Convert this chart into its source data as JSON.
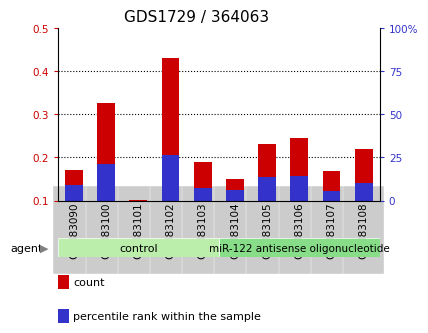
{
  "title": "GDS1729 / 364063",
  "categories": [
    "GSM83090",
    "GSM83100",
    "GSM83101",
    "GSM83102",
    "GSM83103",
    "GSM83104",
    "GSM83105",
    "GSM83106",
    "GSM83107",
    "GSM83108"
  ],
  "red_values": [
    0.17,
    0.325,
    0.101,
    0.43,
    0.19,
    0.15,
    0.232,
    0.245,
    0.168,
    0.22
  ],
  "blue_values": [
    0.135,
    0.185,
    0.1,
    0.205,
    0.13,
    0.125,
    0.155,
    0.158,
    0.122,
    0.14
  ],
  "ymin": 0.1,
  "ymax": 0.5,
  "yticks_left": [
    0.1,
    0.2,
    0.3,
    0.4,
    0.5
  ],
  "yticks_right": [
    0,
    25,
    50,
    75,
    100
  ],
  "n_control": 5,
  "n_treatment": 5,
  "control_label": "control",
  "treatment_label": "miR-122 antisense oligonucleotide",
  "agent_label": "agent",
  "legend_red": "count",
  "legend_blue": "percentile rank within the sample",
  "bar_color_red": "#cc0000",
  "bar_color_blue": "#3333cc",
  "control_bg": "#bbeeaa",
  "treatment_bg": "#88dd88",
  "tick_bg": "#cccccc",
  "bar_width": 0.55,
  "title_fontsize": 11,
  "tick_fontsize": 7.5,
  "label_fontsize": 8
}
